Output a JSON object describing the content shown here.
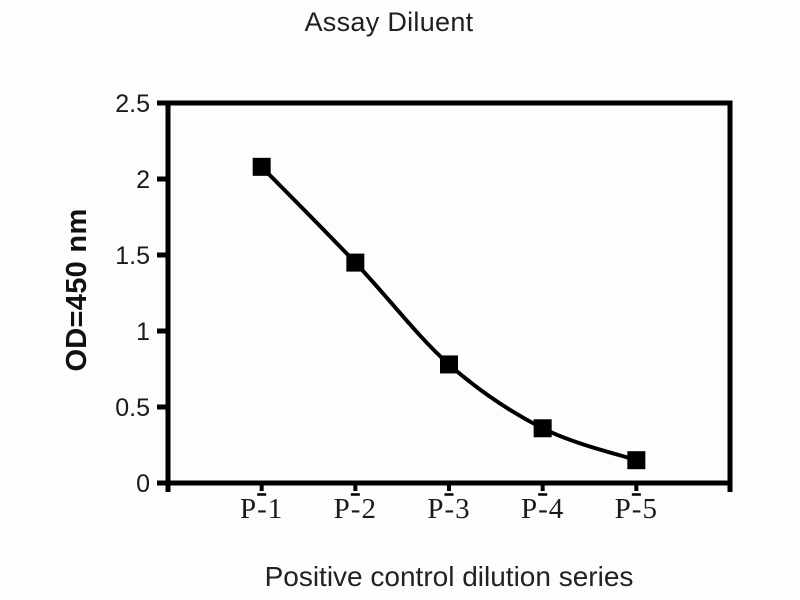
{
  "page": {
    "background": "#fdfdfd"
  },
  "chart_data": {
    "type": "line",
    "title": "Assay Diluent",
    "xlabel": "Positive control dilution series",
    "ylabel": "OD=450 nm",
    "categories": [
      "P-1",
      "P-2",
      "P-3",
      "P-4",
      "P-5"
    ],
    "values": [
      2.08,
      1.45,
      0.78,
      0.36,
      0.15
    ],
    "ylim": [
      0,
      2.5
    ],
    "yticks": [
      0,
      0.5,
      1,
      1.5,
      2,
      2.5
    ],
    "ytick_labels": [
      "0",
      "0.5",
      "1",
      "1.5",
      "2",
      "2.5"
    ],
    "grid": false,
    "legend": "none",
    "series_color": "#000000",
    "marker_shape": "square",
    "marker_color": "#000000"
  }
}
